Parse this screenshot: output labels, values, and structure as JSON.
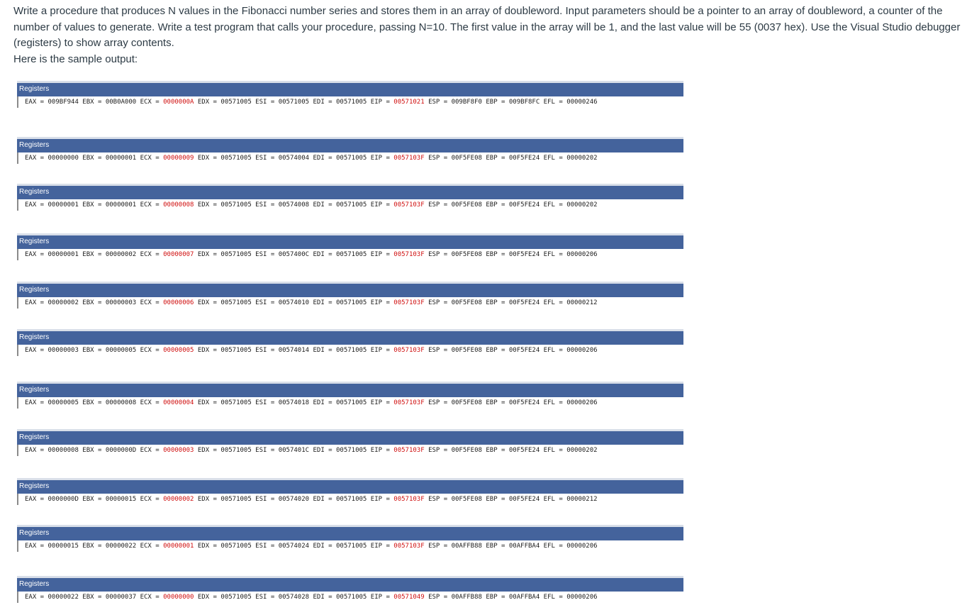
{
  "intro": {
    "lines": [
      "Write a procedure that produces N values in the Fibonacci number series and stores them in an array of doubleword.  Input parameters should be a pointer to an array of doubleword, a counter of the",
      "number of values to generate.  Write a test program that calls your procedure, passing N=10.  The first value in the array will be 1, and the last value will be 55 (0037 hex).  Use the Visual Studio debugger",
      "(registers) to show array contents.",
      "Here is the sample output:"
    ]
  },
  "panel_title": "Registers",
  "panels": [
    {
      "EAX": "009BF944",
      "EBX": "00B0A000",
      "ECX": "0000000A",
      "EDX": "00571005",
      "ESI": "00571005",
      "EDI": "00571005",
      "EIP": "00571021",
      "ESP": "009BF8F0",
      "EBP": "009BF8FC",
      "EFL": "00000246"
    },
    {
      "EAX": "00000000",
      "EBX": "00000001",
      "ECX": "00000009",
      "EDX": "00571005",
      "ESI": "00574004",
      "EDI": "00571005",
      "EIP": "0057103F",
      "ESP": "00F5FE08",
      "EBP": "00F5FE24",
      "EFL": "00000202"
    },
    {
      "EAX": "00000001",
      "EBX": "00000001",
      "ECX": "00000008",
      "EDX": "00571005",
      "ESI": "00574008",
      "EDI": "00571005",
      "EIP": "0057103F",
      "ESP": "00F5FE08",
      "EBP": "00F5FE24",
      "EFL": "00000202"
    },
    {
      "EAX": "00000001",
      "EBX": "00000002",
      "ECX": "00000007",
      "EDX": "00571005",
      "ESI": "0057400C",
      "EDI": "00571005",
      "EIP": "0057103F",
      "ESP": "00F5FE08",
      "EBP": "00F5FE24",
      "EFL": "00000206"
    },
    {
      "EAX": "00000002",
      "EBX": "00000003",
      "ECX": "00000006",
      "EDX": "00571005",
      "ESI": "00574010",
      "EDI": "00571005",
      "EIP": "0057103F",
      "ESP": "00F5FE08",
      "EBP": "00F5FE24",
      "EFL": "00000212"
    },
    {
      "EAX": "00000003",
      "EBX": "00000005",
      "ECX": "00000005",
      "EDX": "00571005",
      "ESI": "00574014",
      "EDI": "00571005",
      "EIP": "0057103F",
      "ESP": "00F5FE08",
      "EBP": "00F5FE24",
      "EFL": "00000206"
    },
    {
      "EAX": "00000005",
      "EBX": "00000008",
      "ECX": "00000004",
      "EDX": "00571005",
      "ESI": "00574018",
      "EDI": "00571005",
      "EIP": "0057103F",
      "ESP": "00F5FE08",
      "EBP": "00F5FE24",
      "EFL": "00000206"
    },
    {
      "EAX": "00000008",
      "EBX": "0000000D",
      "ECX": "00000003",
      "EDX": "00571005",
      "ESI": "0057401C",
      "EDI": "00571005",
      "EIP": "0057103F",
      "ESP": "00F5FE08",
      "EBP": "00F5FE24",
      "EFL": "00000202"
    },
    {
      "EAX": "0000000D",
      "EBX": "00000015",
      "ECX": "00000002",
      "EDX": "00571005",
      "ESI": "00574020",
      "EDI": "00571005",
      "EIP": "0057103F",
      "ESP": "00F5FE08",
      "EBP": "00F5FE24",
      "EFL": "00000212"
    },
    {
      "EAX": "00000015",
      "EBX": "00000022",
      "ECX": "00000001",
      "EDX": "00571005",
      "ESI": "00574024",
      "EDI": "00571005",
      "EIP": "0057103F",
      "ESP": "00AFFB88",
      "EBP": "00AFFBA4",
      "EFL": "00000206"
    },
    {
      "EAX": "00000022",
      "EBX": "00000037",
      "ECX": "00000000",
      "EDX": "00571005",
      "ESI": "00574028",
      "EDI": "00571005",
      "EIP": "00571049",
      "ESP": "00AFFB88",
      "EBP": "00AFFBA4",
      "EFL": "00000206"
    }
  ]
}
